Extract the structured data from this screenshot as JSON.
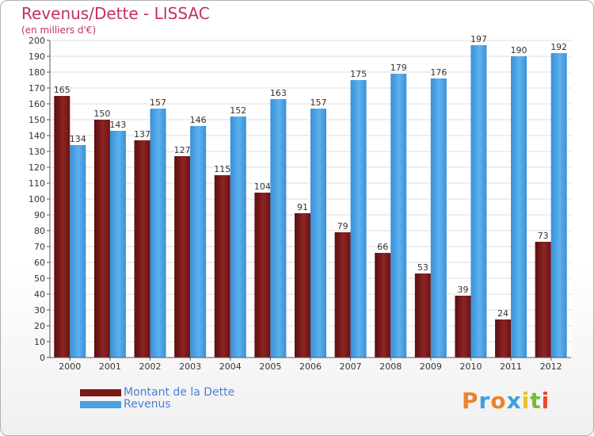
{
  "chart_data": {
    "type": "bar",
    "title": "Revenus/Dette - LISSAC",
    "subtitle": "(en milliers d'€)",
    "categories": [
      "2000",
      "2001",
      "2002",
      "2003",
      "2004",
      "2005",
      "2006",
      "2007",
      "2008",
      "2009",
      "2010",
      "2011",
      "2012"
    ],
    "series": [
      {
        "name": "Montant de la Dette",
        "color": "#7a1818",
        "values": [
          165,
          150,
          137,
          127,
          115,
          104,
          91,
          79,
          66,
          53,
          39,
          24,
          73
        ]
      },
      {
        "name": "Revenus",
        "color": "#4aa0e6",
        "values": [
          134,
          143,
          157,
          146,
          152,
          163,
          157,
          175,
          179,
          176,
          197,
          190,
          192
        ]
      }
    ],
    "ylim": [
      0,
      200
    ],
    "yticks": [
      0,
      10,
      20,
      30,
      40,
      50,
      60,
      70,
      80,
      90,
      100,
      110,
      120,
      130,
      140,
      150,
      160,
      170,
      180,
      190,
      200
    ],
    "grid": true,
    "legend_position": "bottom-left"
  },
  "logo": {
    "text": "Proxiti",
    "letters": [
      {
        "ch": "P",
        "color": "#e8852a"
      },
      {
        "ch": "r",
        "color": "#3aa0dc"
      },
      {
        "ch": "o",
        "color": "#e8852a"
      },
      {
        "ch": "x",
        "color": "#3aa0dc"
      },
      {
        "ch": "i",
        "color": "#e8c02a"
      },
      {
        "ch": "t",
        "color": "#7ab93a"
      },
      {
        "ch": "i",
        "color": "#e84a2a"
      }
    ]
  }
}
